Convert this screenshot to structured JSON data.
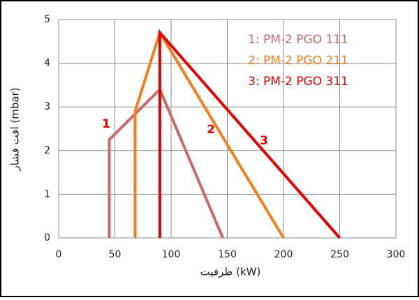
{
  "chart_data": {
    "type": "line",
    "xlabel": "ظرفیت (kW)",
    "ylabel": "افت فشار (mbar)",
    "xlim": [
      0,
      300
    ],
    "xticks": [
      0,
      50,
      100,
      150,
      200,
      250,
      300
    ],
    "ylim": [
      0,
      5
    ],
    "yticks": [
      0,
      1,
      2,
      3,
      4,
      5
    ],
    "grid": true,
    "legend": "top-right",
    "series": [
      {
        "name": "1: PM-2 PGO 111",
        "color": "#c86a6a",
        "x": [
          45,
          45,
          90,
          146
        ],
        "values": [
          0,
          2.25,
          3.4,
          0
        ]
      },
      {
        "name": "2: PM-2 PGO 211",
        "color": "#f07f22",
        "x": [
          68,
          68,
          90,
          200
        ],
        "values": [
          0,
          2.9,
          4.7,
          0
        ]
      },
      {
        "name": "3: PM-2 PGO 311",
        "color": "#e00000",
        "x": [
          90,
          90,
          250
        ],
        "values": [
          0,
          4.7,
          0
        ]
      }
    ],
    "annotations": [
      "1",
      "2",
      "3"
    ]
  }
}
